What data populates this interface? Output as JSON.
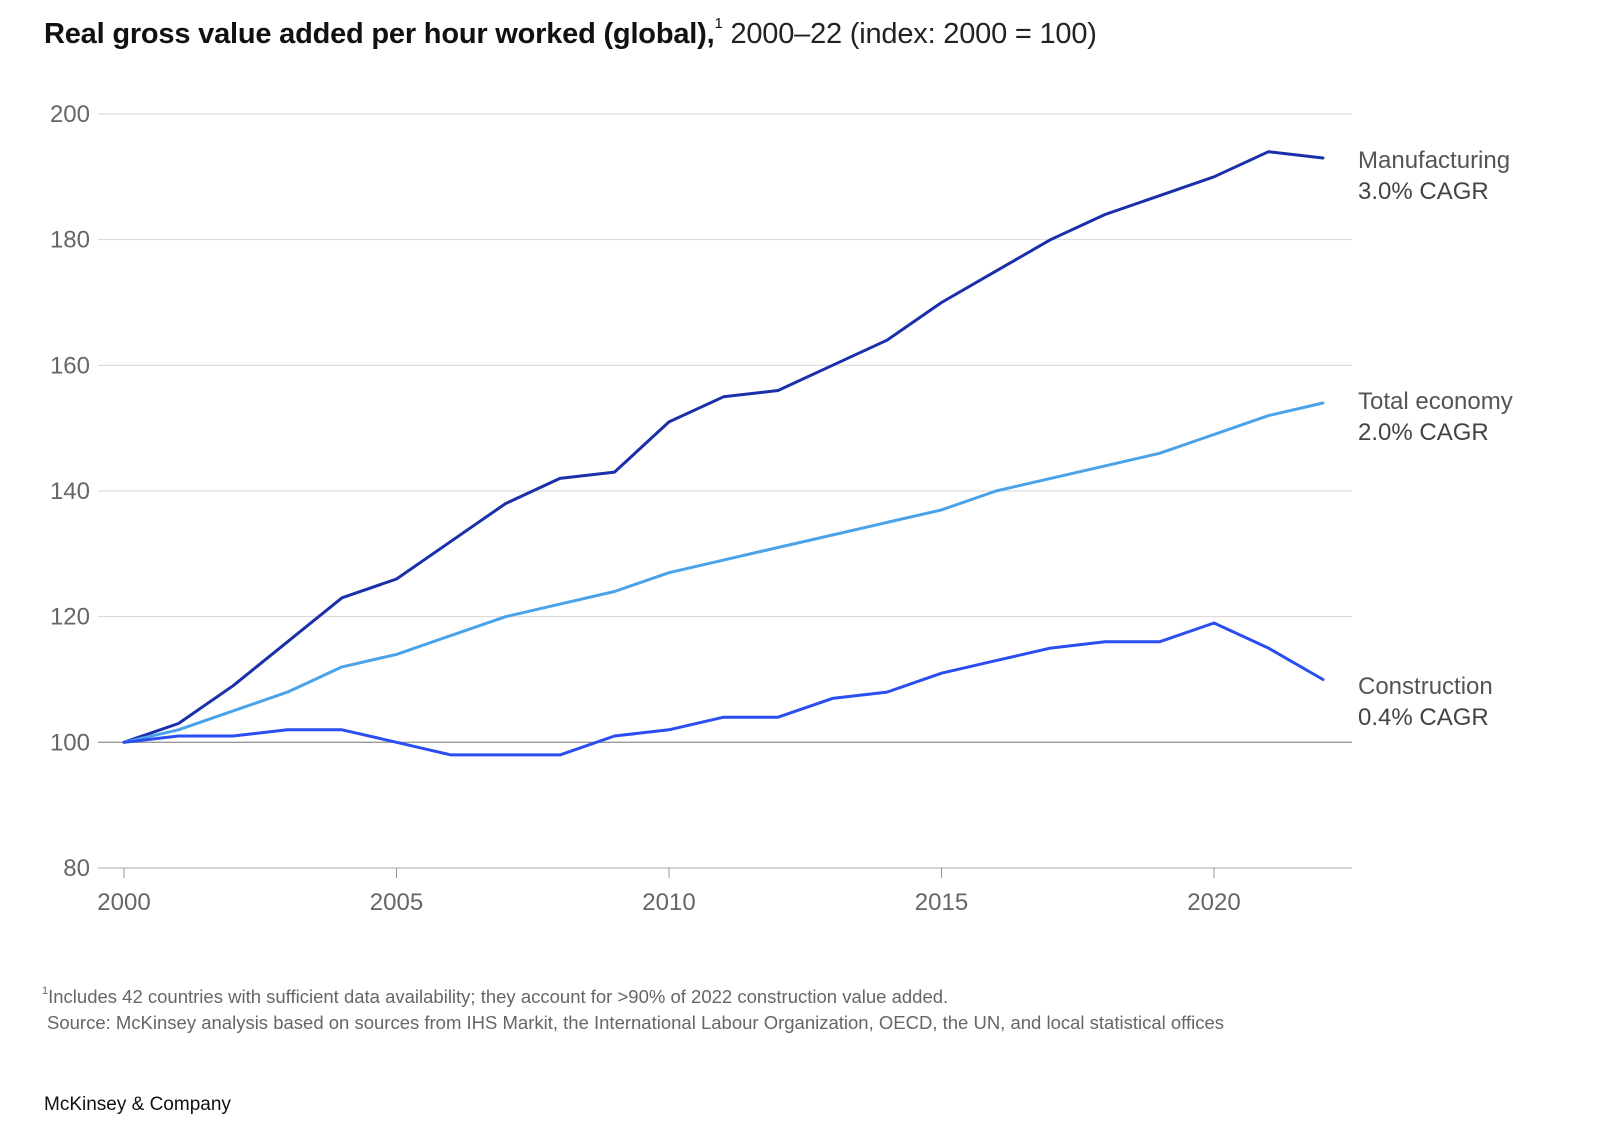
{
  "header": {
    "title_bold": "Real gross value added per hour worked (global),",
    "title_sup": "1",
    "title_rest": " 2000–22 (index: 2000 = 100)"
  },
  "footnote": {
    "marker": "1",
    "text": "Includes 42 countries with sufficient data availability; they account for >90% of 2022 construction value added.",
    "source": "Source: McKinsey analysis based on sources from IHS Markit, the International Labour Organization, OECD, the UN, and local statistical offices"
  },
  "brand": "McKinsey & Company",
  "chart_data": {
    "type": "line",
    "title": "Real gross value added per hour worked (global), 2000–22 (index: 2000 = 100)",
    "xlabel": "",
    "ylabel": "",
    "x": [
      2000,
      2001,
      2002,
      2003,
      2004,
      2005,
      2006,
      2007,
      2008,
      2009,
      2010,
      2011,
      2012,
      2013,
      2014,
      2015,
      2016,
      2017,
      2018,
      2019,
      2020,
      2021,
      2022
    ],
    "xlim": [
      2000,
      2022
    ],
    "ylim": [
      80,
      200
    ],
    "xticks": [
      2000,
      2005,
      2010,
      2015,
      2020
    ],
    "yticks": [
      80,
      100,
      120,
      140,
      160,
      180,
      200
    ],
    "grid": "horizontal",
    "legend": "direct labels at right",
    "series": [
      {
        "name": "Manufacturing",
        "cagr": "3.0% CAGR",
        "color": "#1a2faa",
        "values": [
          100,
          103,
          109,
          116,
          123,
          126,
          132,
          138,
          142,
          143,
          151,
          155,
          156,
          160,
          164,
          170,
          175,
          180,
          184,
          187,
          190,
          194,
          193
        ]
      },
      {
        "name": "Total economy",
        "cagr": "2.0% CAGR",
        "color": "#4aa3e8",
        "values": [
          100,
          102,
          105,
          108,
          112,
          114,
          117,
          120,
          122,
          124,
          127,
          129,
          131,
          133,
          135,
          137,
          140,
          142,
          144,
          146,
          149,
          152,
          154
        ]
      },
      {
        "name": "Construction",
        "cagr": "0.4% CAGR",
        "color": "#2b4ef0",
        "values": [
          100,
          101,
          101,
          102,
          102,
          100,
          98,
          98,
          98,
          101,
          102,
          104,
          104,
          107,
          108,
          111,
          113,
          115,
          116,
          116,
          119,
          115,
          110
        ]
      }
    ]
  }
}
